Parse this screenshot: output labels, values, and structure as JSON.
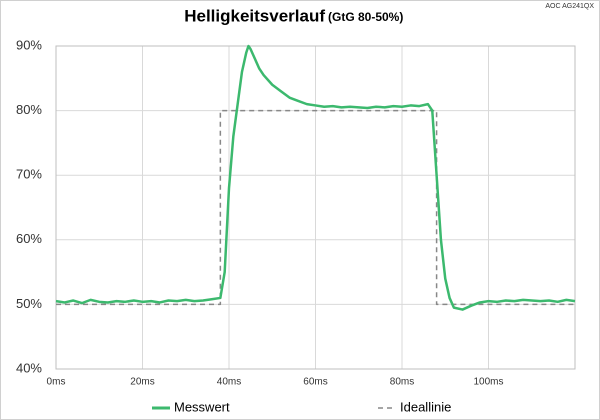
{
  "chart_data": {
    "type": "line",
    "title": "Helligkeitsverlauf",
    "subtitle": "(GtG 80-50%)",
    "annotation": "AOC AG241QX",
    "xlim": [
      0,
      120
    ],
    "ylim": [
      40,
      90
    ],
    "xticks": [
      {
        "value": 0,
        "label": "0ms"
      },
      {
        "value": 20,
        "label": "20ms"
      },
      {
        "value": 40,
        "label": "40ms"
      },
      {
        "value": 60,
        "label": "60ms"
      },
      {
        "value": 80,
        "label": "80ms"
      },
      {
        "value": 100,
        "label": "100ms"
      }
    ],
    "yticks": [
      {
        "value": 40,
        "label": "40%"
      },
      {
        "value": 50,
        "label": "50%"
      },
      {
        "value": 60,
        "label": "60%"
      },
      {
        "value": 70,
        "label": "70%"
      },
      {
        "value": 80,
        "label": "80%"
      },
      {
        "value": 90,
        "label": "90%"
      }
    ],
    "grid": true,
    "legend": "bottom",
    "series": [
      {
        "name": "Messwert",
        "color": "#3cb96e",
        "dash": false,
        "x": [
          0,
          2,
          4,
          6,
          8,
          10,
          12,
          14,
          16,
          18,
          20,
          22,
          24,
          26,
          28,
          30,
          32,
          34,
          36,
          38,
          39,
          40,
          41,
          42,
          43,
          44,
          44.5,
          45,
          46,
          47,
          48,
          50,
          52,
          54,
          56,
          58,
          60,
          62,
          64,
          66,
          68,
          70,
          72,
          74,
          76,
          78,
          80,
          82,
          84,
          86,
          87,
          88,
          89,
          90,
          91,
          92,
          94,
          96,
          98,
          100,
          102,
          104,
          106,
          108,
          110,
          112,
          114,
          116,
          118,
          120
        ],
        "values": [
          50.5,
          50.3,
          50.6,
          50.2,
          50.7,
          50.4,
          50.3,
          50.5,
          50.4,
          50.6,
          50.4,
          50.5,
          50.3,
          50.6,
          50.5,
          50.7,
          50.5,
          50.6,
          50.8,
          51,
          55,
          68,
          76,
          81,
          86,
          89,
          90,
          89.5,
          88,
          86.5,
          85.5,
          84,
          83,
          82,
          81.5,
          81,
          80.8,
          80.6,
          80.7,
          80.5,
          80.6,
          80.5,
          80.4,
          80.6,
          80.5,
          80.7,
          80.6,
          80.8,
          80.7,
          81,
          80,
          70,
          60,
          54,
          51,
          49.5,
          49.2,
          49.8,
          50.3,
          50.5,
          50.4,
          50.6,
          50.5,
          50.7,
          50.6,
          50.5,
          50.6,
          50.4,
          50.7,
          50.5
        ]
      },
      {
        "name": "Ideallinie",
        "color": "#888888",
        "dash": true,
        "x": [
          0,
          38,
          38,
          88,
          88,
          120
        ],
        "values": [
          50,
          50,
          80,
          80,
          50,
          50
        ]
      }
    ]
  }
}
